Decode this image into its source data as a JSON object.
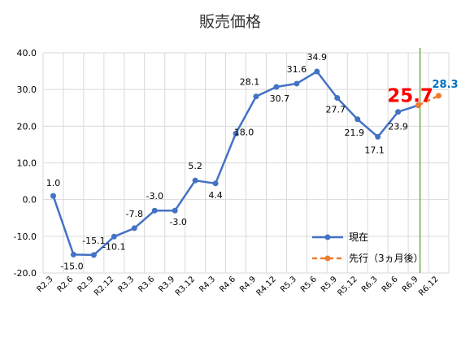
{
  "chart_data": {
    "type": "line",
    "title": "販売価格",
    "categories": [
      "R2.3",
      "R2.6",
      "R2.9",
      "R2.12",
      "R3.3",
      "R3.6",
      "R3.9",
      "R3.12",
      "R4.3",
      "R4.6",
      "R4.9",
      "R4.12",
      "R5.3",
      "R5.6",
      "R5.9",
      "R5.12",
      "R6.3",
      "R6.6",
      "R6.9",
      "R6.12"
    ],
    "ylim": [
      -20,
      40
    ],
    "yticks": [
      "-20.0",
      "-10.0",
      "0.0",
      "10.0",
      "20.0",
      "30.0",
      "40.0"
    ],
    "grid": true,
    "legend_position": "bottom-right, inside plot",
    "vertical_marker_category": "R6.9",
    "series": [
      {
        "name": "現在",
        "color": "#4472c4",
        "style": "solid",
        "values": [
          1.0,
          -15.0,
          -15.1,
          -10.1,
          -7.8,
          -3.0,
          -3.0,
          5.2,
          4.4,
          18.0,
          28.1,
          30.7,
          31.6,
          34.9,
          27.7,
          21.9,
          17.1,
          23.9,
          25.7,
          null
        ],
        "labels": [
          "1.0",
          "-15.0",
          "-15.1",
          "-10.1",
          "-7.8",
          "-3.0",
          "-3.0",
          "5.2",
          "4.4",
          "18.0",
          "28.1",
          "30.7",
          "31.6",
          "34.9",
          "27.7",
          "21.9",
          "17.1",
          "23.9",
          "25.7",
          ""
        ],
        "highlight_label_color": "#ff0000"
      },
      {
        "name": "先行（3ヵ月後）",
        "color": "#ed7d31",
        "style": "dashed",
        "values": [
          null,
          null,
          null,
          null,
          null,
          null,
          null,
          null,
          null,
          null,
          null,
          null,
          null,
          null,
          null,
          null,
          null,
          null,
          25.7,
          28.3
        ],
        "labels": [
          "",
          "",
          "",
          "",
          "",
          "",
          "",
          "",
          "",
          "",
          "",
          "",
          "",
          "",
          "",
          "",
          "",
          "",
          "",
          "28.3"
        ],
        "label_color": "#0070c0"
      }
    ]
  }
}
